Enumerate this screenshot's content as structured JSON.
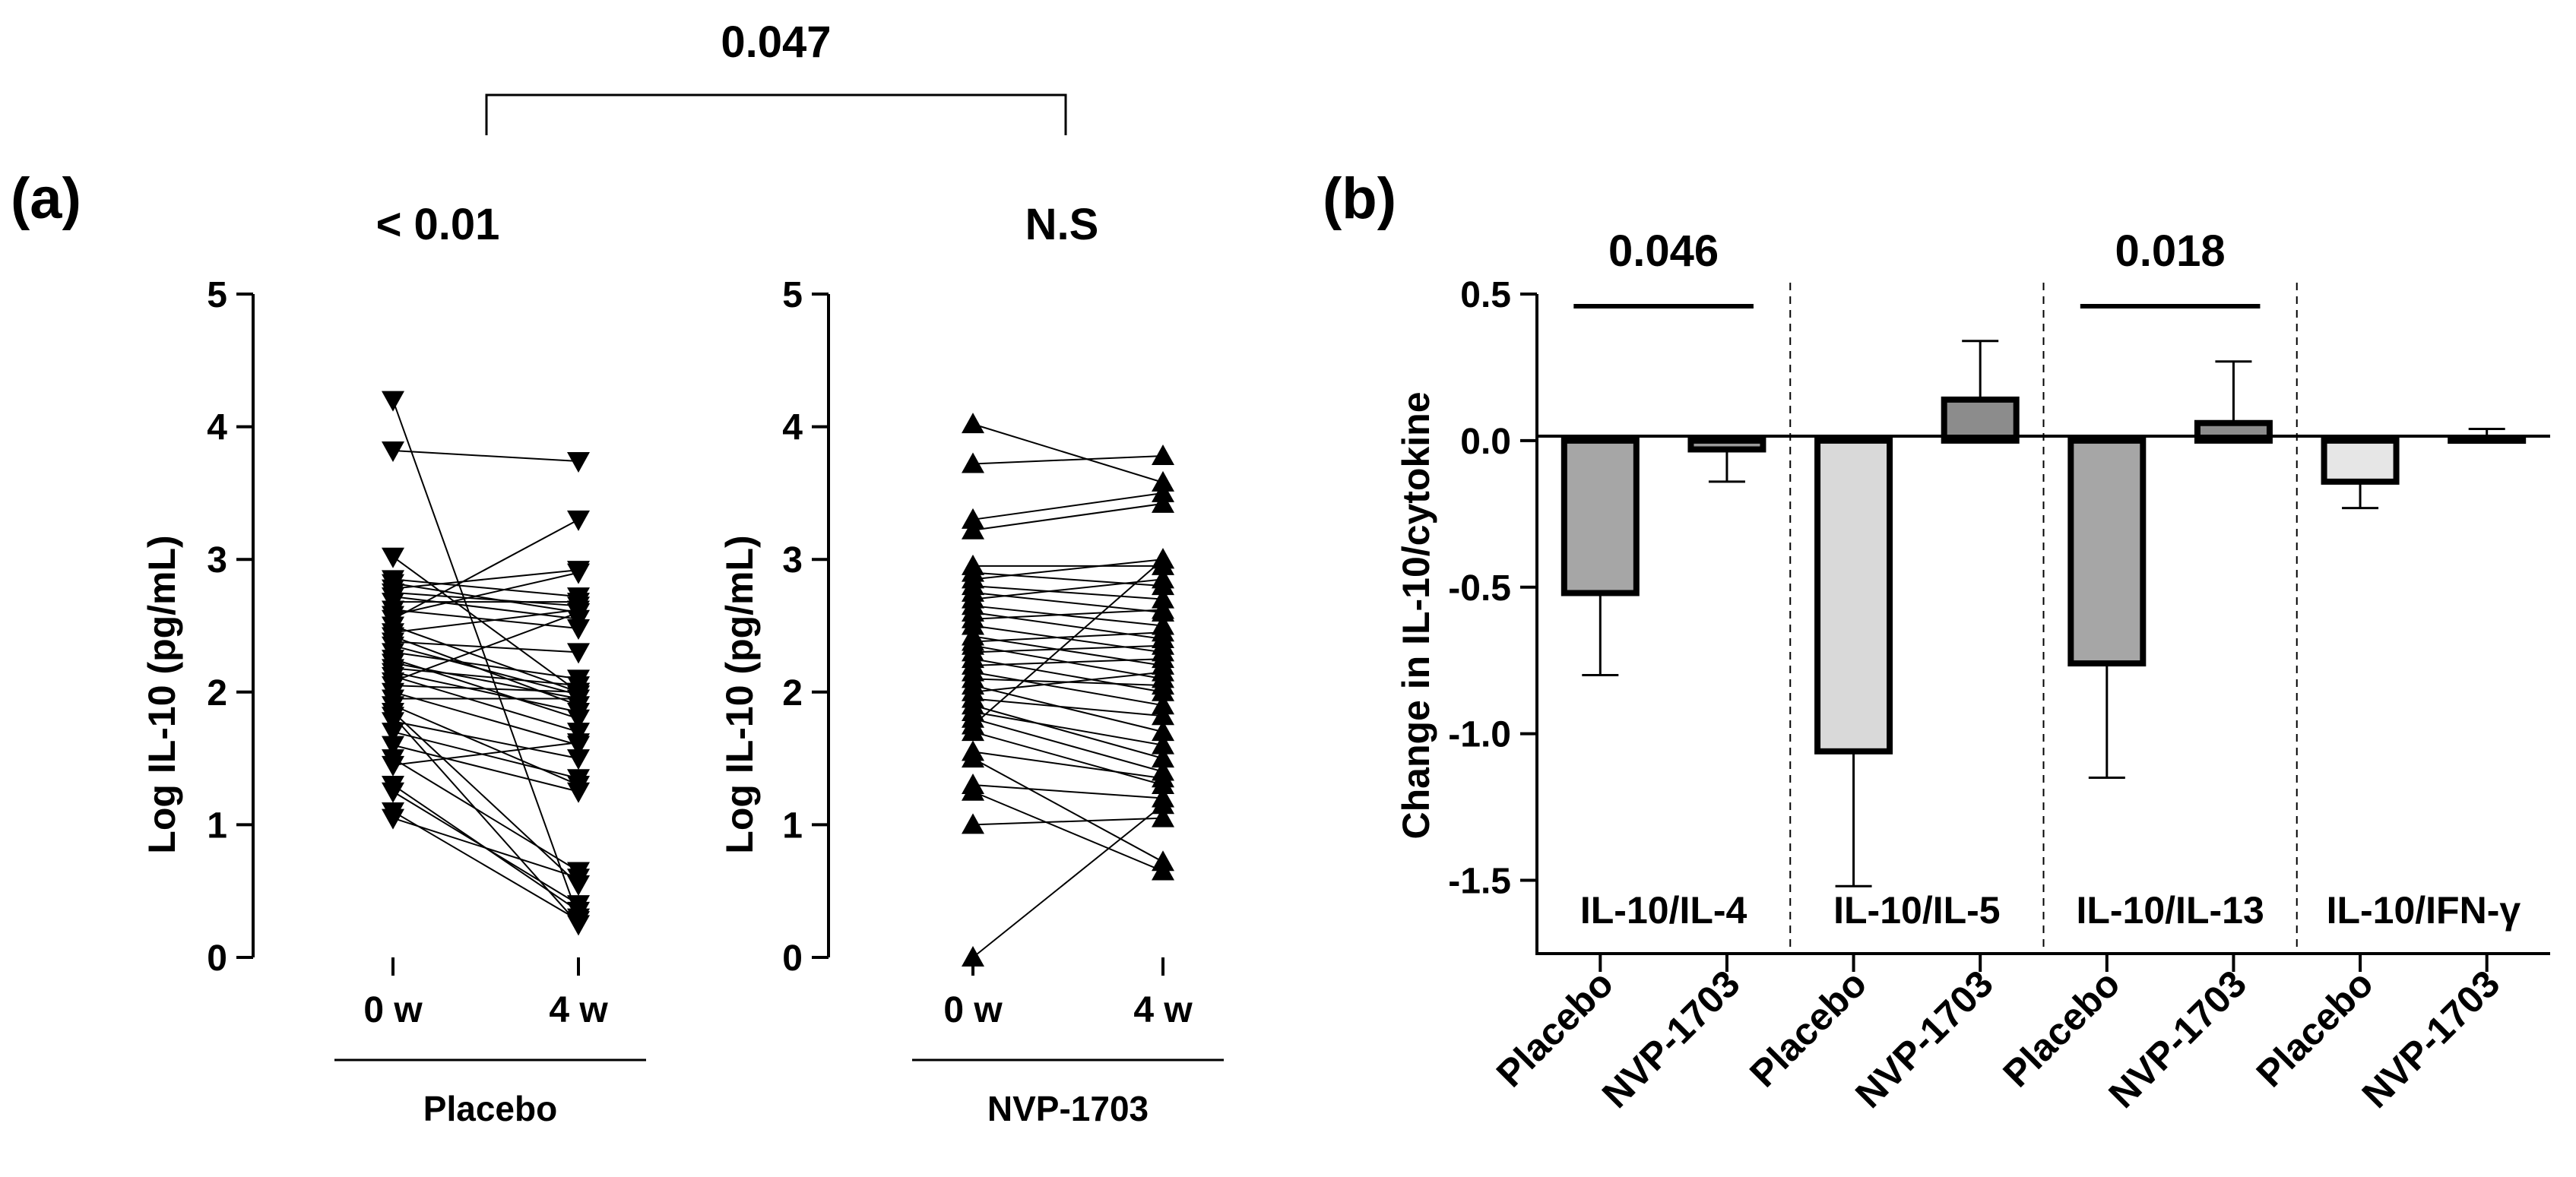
{
  "chart_data": [
    {
      "type": "scatter",
      "panel": "(a)",
      "title": "< 0.01",
      "group": "Placebo",
      "marker": "down-triangle",
      "xticks": [
        "0 w",
        "4 w"
      ],
      "ylabel": "Log IL-10 (pg/mL)",
      "ylim": [
        0,
        5
      ],
      "yticks": [
        "0",
        "1",
        "2",
        "3",
        "4",
        "5"
      ],
      "pairs": [
        [
          4.2,
          0.3
        ],
        [
          3.82,
          3.74
        ],
        [
          3.02,
          2.0
        ],
        [
          2.85,
          2.72
        ],
        [
          2.82,
          2.6
        ],
        [
          2.78,
          2.92
        ],
        [
          2.75,
          2.65
        ],
        [
          2.72,
          2.55
        ],
        [
          2.68,
          2.68
        ],
        [
          2.62,
          2.48
        ],
        [
          2.58,
          2.9
        ],
        [
          2.55,
          3.3
        ],
        [
          2.5,
          2.0
        ],
        [
          2.45,
          2.62
        ],
        [
          2.42,
          1.9
        ],
        [
          2.38,
          2.3
        ],
        [
          2.35,
          1.98
        ],
        [
          2.3,
          2.1
        ],
        [
          2.25,
          1.8
        ],
        [
          2.22,
          1.95
        ],
        [
          2.18,
          2.05
        ],
        [
          2.15,
          1.85
        ],
        [
          2.12,
          1.7
        ],
        [
          2.08,
          2.6
        ],
        [
          2.05,
          2.0
        ],
        [
          2.0,
          1.6
        ],
        [
          1.95,
          1.95
        ],
        [
          1.9,
          1.3
        ],
        [
          1.85,
          0.55
        ],
        [
          1.82,
          0.25
        ],
        [
          1.78,
          1.5
        ],
        [
          1.7,
          1.35
        ],
        [
          1.6,
          1.25
        ],
        [
          1.5,
          0.65
        ],
        [
          1.45,
          1.62
        ],
        [
          1.3,
          0.35
        ],
        [
          1.25,
          0.4
        ],
        [
          1.1,
          0.28
        ],
        [
          1.05,
          0.6
        ]
      ]
    },
    {
      "type": "scatter",
      "panel": "",
      "title": "N.S",
      "group": "NVP-1703",
      "marker": "up-triangle",
      "xticks": [
        "0 w",
        "4 w"
      ],
      "ylabel": "Log IL-10 (pg/mL)",
      "ylim": [
        0,
        5
      ],
      "yticks": [
        "0",
        "1",
        "2",
        "3",
        "4",
        "5"
      ],
      "pairs": [
        [
          4.02,
          3.58
        ],
        [
          3.72,
          3.78
        ],
        [
          3.3,
          3.5
        ],
        [
          3.22,
          3.42
        ],
        [
          2.95,
          2.95
        ],
        [
          2.9,
          2.8
        ],
        [
          2.85,
          3.0
        ],
        [
          2.8,
          2.7
        ],
        [
          2.75,
          2.6
        ],
        [
          2.7,
          2.85
        ],
        [
          2.65,
          2.5
        ],
        [
          2.6,
          2.4
        ],
        [
          2.55,
          2.62
        ],
        [
          2.5,
          2.3
        ],
        [
          2.42,
          2.2
        ],
        [
          2.38,
          2.45
        ],
        [
          2.35,
          2.1
        ],
        [
          2.3,
          2.35
        ],
        [
          2.25,
          2.0
        ],
        [
          2.2,
          2.25
        ],
        [
          2.15,
          1.9
        ],
        [
          2.1,
          2.05
        ],
        [
          2.05,
          1.7
        ],
        [
          2.0,
          2.15
        ],
        [
          1.95,
          1.82
        ],
        [
          1.9,
          1.5
        ],
        [
          1.85,
          1.6
        ],
        [
          1.8,
          1.4
        ],
        [
          1.75,
          3.0
        ],
        [
          1.7,
          1.3
        ],
        [
          1.55,
          1.35
        ],
        [
          1.5,
          0.72
        ],
        [
          1.3,
          1.2
        ],
        [
          1.25,
          0.65
        ],
        [
          1.0,
          1.05
        ],
        [
          0.0,
          1.15
        ]
      ]
    },
    {
      "type": "bar",
      "panel": "(b)",
      "ylabel": "Change in IL-10/cytokine",
      "ylim": [
        -1.75,
        0.5
      ],
      "yticks": [
        "0.5",
        "0.0",
        "-0.5",
        "-1.0",
        "-1.5"
      ],
      "groups": [
        "IL-10/IL-4",
        "IL-10/IL-5",
        "IL-10/IL-13",
        "IL-10/IFN-γ"
      ],
      "categories": [
        "Placebo",
        "NVP-1703",
        "Placebo",
        "NVP-1703",
        "Placebo",
        "NVP-1703",
        "Placebo",
        "NVP-1703"
      ],
      "values": [
        -0.52,
        -0.03,
        -1.06,
        0.14,
        -0.76,
        0.06,
        -0.14,
        0.01
      ],
      "errors": [
        0.28,
        0.11,
        0.46,
        0.2,
        0.39,
        0.21,
        0.09,
        0.03
      ],
      "colors": [
        "#a6a6a6",
        "#9b9b9b",
        "#d9d9d9",
        "#8c8c8c",
        "#a6a6a6",
        "#8c8c8c",
        "#e6e6e6",
        "#d9d9d9"
      ],
      "significance": [
        {
          "label": "0.046",
          "from": 0,
          "to": 1
        },
        {
          "label": "0.018",
          "from": 4,
          "to": 5
        }
      ]
    }
  ],
  "top_comparison": {
    "label": "0.047"
  }
}
